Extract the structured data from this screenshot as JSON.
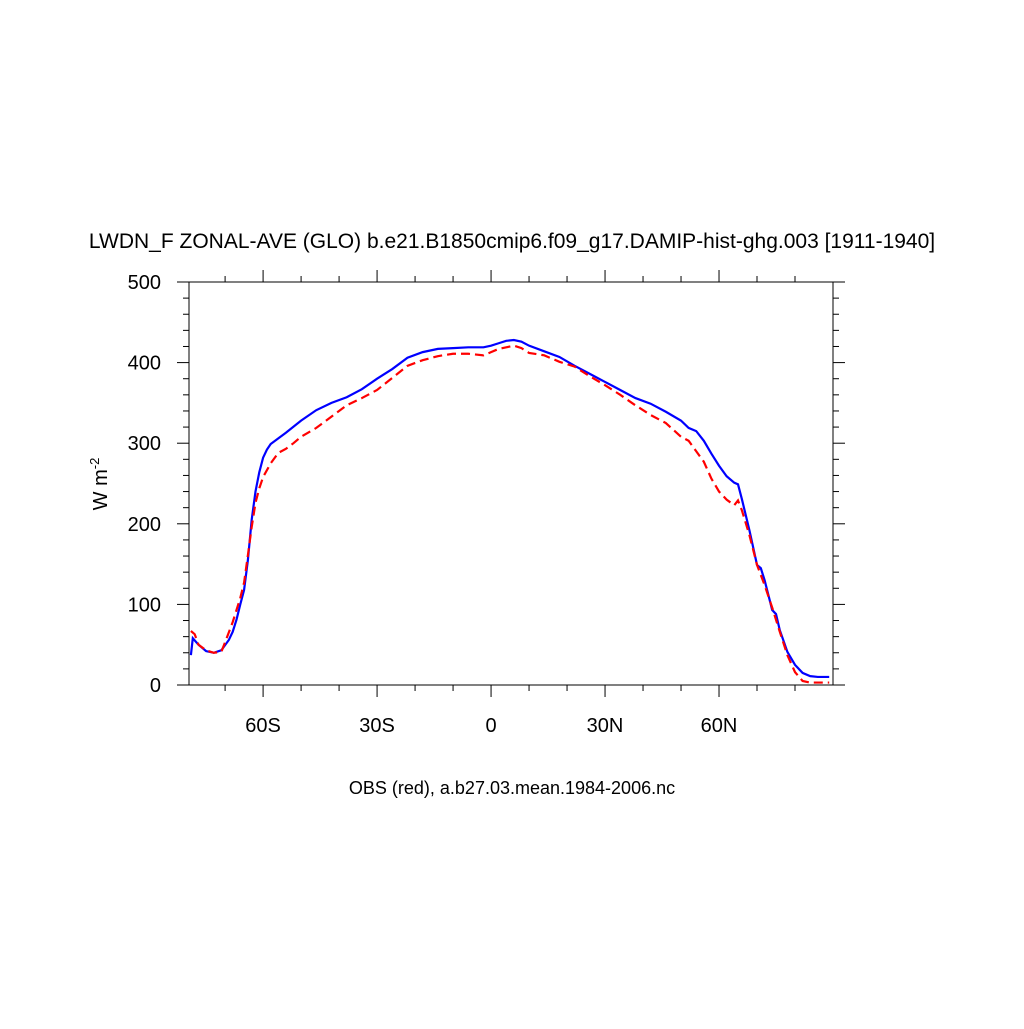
{
  "chart_data": {
    "type": "line",
    "title": "LWDN_F ZONAL-AVE (GLO) b.e21.B1850cmip6.f09_g17.DAMIP-hist-ghg.003 [1911-1940]",
    "subtitle": "OBS (red), a.b27.03.mean.1984-2006.nc",
    "ylabel": "W m",
    "ylabel_sup": "-2",
    "xlim": [
      -79.5,
      90
    ],
    "ylim": [
      0,
      500
    ],
    "xticks": [
      {
        "value": -60,
        "label": "60S"
      },
      {
        "value": -30,
        "label": "30S"
      },
      0,
      {
        "value": 30,
        "label": "30N"
      },
      {
        "value": 60,
        "label": "60N"
      }
    ],
    "xminorticks": [
      -70,
      -50,
      -40,
      -20,
      -10,
      10,
      20,
      40,
      50,
      70,
      80
    ],
    "yticks": [
      0,
      100,
      200,
      300,
      400,
      500
    ],
    "yminorticks": [
      20,
      40,
      60,
      80,
      120,
      140,
      160,
      180,
      220,
      240,
      260,
      280,
      320,
      340,
      360,
      380,
      420,
      440,
      460,
      480
    ],
    "series": [
      {
        "color": "#0000ff",
        "dash": false,
        "x": [
          -79,
          -78.5,
          -77,
          -75,
          -73,
          -71,
          -69,
          -68,
          -67,
          -66,
          -65,
          -64,
          -63,
          -62,
          -61,
          -60,
          -59,
          -58,
          -56,
          -54,
          -50,
          -46,
          -42,
          -38,
          -34,
          -30,
          -26,
          -22,
          -18,
          -14,
          -10,
          -6,
          -2,
          0,
          2,
          4,
          6,
          8,
          10,
          14,
          18,
          22,
          26,
          30,
          34,
          38,
          42,
          46,
          50,
          52,
          54,
          56,
          58,
          60,
          62,
          64,
          65,
          66,
          68,
          70,
          71,
          72,
          74,
          75,
          76,
          78,
          80,
          82,
          84,
          86,
          89
        ],
        "values": [
          37,
          58,
          50,
          42,
          40,
          43,
          56,
          66,
          81,
          100,
          118,
          155,
          205,
          240,
          264,
          282,
          292,
          299,
          306,
          313,
          328,
          341,
          350,
          357,
          367,
          380,
          392,
          406,
          413,
          417,
          418,
          419,
          419,
          421,
          424,
          427,
          428,
          426,
          421,
          414,
          407,
          396,
          386,
          376,
          366,
          356,
          349,
          339,
          328,
          319,
          315,
          303,
          287,
          272,
          259,
          251,
          249,
          231,
          192,
          149,
          145,
          130,
          93,
          88,
          68,
          41,
          25,
          15,
          11,
          10,
          10
        ]
      },
      {
        "color": "#ff0000",
        "dash": true,
        "x": [
          -79,
          -78,
          -77,
          -75,
          -73,
          -71,
          -70,
          -68,
          -66,
          -65,
          -64,
          -63,
          -62,
          -61,
          -60,
          -58,
          -56,
          -54,
          -52,
          -50,
          -46,
          -42,
          -38,
          -34,
          -30,
          -26,
          -22,
          -18,
          -14,
          -10,
          -6,
          -2,
          0,
          2,
          4,
          6,
          8,
          10,
          14,
          18,
          22,
          26,
          30,
          34,
          38,
          42,
          46,
          50,
          52,
          54,
          56,
          58,
          60,
          62,
          64,
          65,
          66,
          68,
          70,
          72,
          74,
          76,
          78,
          80,
          82,
          84,
          86,
          89
        ],
        "values": [
          67,
          63,
          50,
          43,
          40,
          41,
          53,
          78,
          108,
          127,
          161,
          196,
          226,
          244,
          258,
          275,
          288,
          293,
          300,
          308,
          319,
          333,
          347,
          356,
          366,
          381,
          396,
          403,
          408,
          411,
          411,
          409,
          413,
          417,
          419,
          421,
          418,
          412,
          409,
          401,
          395,
          383,
          372,
          360,
          347,
          335,
          325,
          308,
          303,
          290,
          277,
          256,
          240,
          230,
          223,
          229,
          217,
          186,
          149,
          124,
          96,
          66,
          37,
          16,
          5,
          3,
          3,
          3
        ]
      }
    ]
  }
}
